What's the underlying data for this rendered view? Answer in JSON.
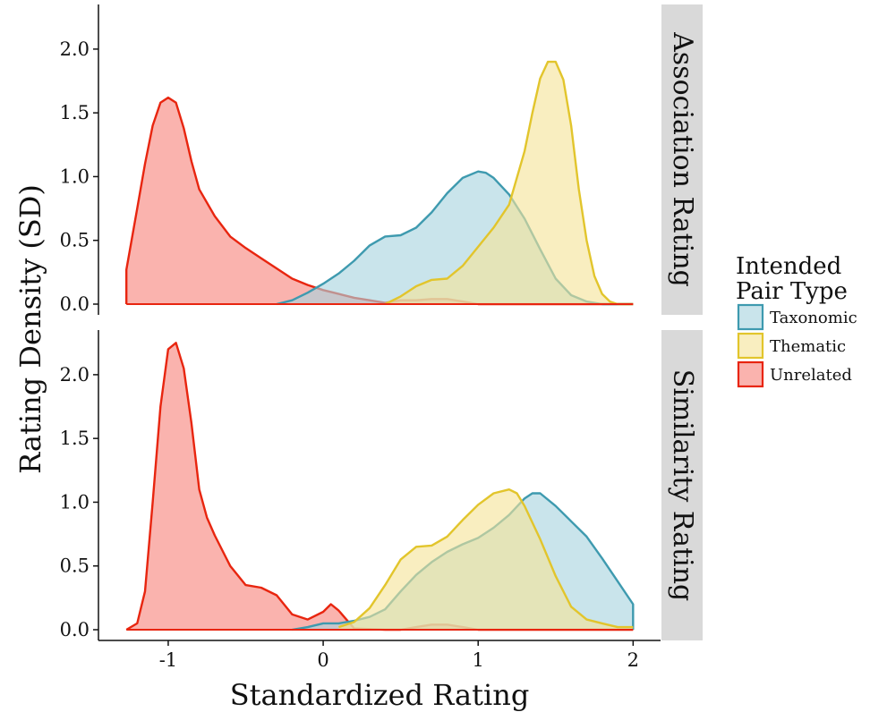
{
  "chart_data": {
    "type": "area",
    "subtype": "density",
    "xlabel": "Standardized Rating",
    "ylabel": "Rating Density (SD)",
    "xlim": [
      -1.3,
      2.05
    ],
    "x_ticks": [
      -1,
      0,
      1,
      2
    ],
    "x_tick_labels": [
      "-1",
      "0",
      "1",
      "2"
    ],
    "legend": {
      "title_lines": [
        "Intended",
        "Pair Type"
      ],
      "placement": "right",
      "entries": [
        {
          "name": "Taxonomic",
          "color": "#3e9aaf",
          "fill": "#a8d4df"
        },
        {
          "name": "Thematic",
          "color": "#e2c52c",
          "fill": "#f6e39a"
        },
        {
          "name": "Unrelated",
          "color": "#e8250f",
          "fill": "#f7857c"
        }
      ]
    },
    "panels": [
      {
        "strip": "Association Rating",
        "ylim": [
          0,
          2.35
        ],
        "y_ticks": [
          0,
          0.5,
          1.0,
          1.5,
          2.0
        ],
        "y_tick_labels": [
          "0.0",
          "0.5",
          "1.0",
          "1.5",
          "2.0"
        ],
        "series": [
          {
            "name": "Taxonomic",
            "x": [
              -0.3,
              -0.2,
              -0.1,
              0,
              0.1,
              0.2,
              0.3,
              0.4,
              0.5,
              0.6,
              0.7,
              0.8,
              0.9,
              1.0,
              1.05,
              1.1,
              1.2,
              1.3,
              1.4,
              1.5,
              1.6,
              1.7,
              1.8,
              1.9,
              2.0
            ],
            "y": [
              0.0,
              0.03,
              0.09,
              0.16,
              0.24,
              0.34,
              0.46,
              0.53,
              0.54,
              0.6,
              0.72,
              0.87,
              0.99,
              1.04,
              1.03,
              0.99,
              0.86,
              0.67,
              0.43,
              0.2,
              0.07,
              0.02,
              0.0,
              0.0,
              0.0
            ]
          },
          {
            "name": "Thematic",
            "x": [
              0.4,
              0.5,
              0.6,
              0.7,
              0.8,
              0.9,
              1.0,
              1.1,
              1.2,
              1.3,
              1.35,
              1.4,
              1.45,
              1.5,
              1.55,
              1.6,
              1.65,
              1.7,
              1.75,
              1.8,
              1.85,
              1.9,
              2.0
            ],
            "y": [
              0.0,
              0.06,
              0.14,
              0.19,
              0.2,
              0.3,
              0.45,
              0.6,
              0.78,
              1.2,
              1.5,
              1.77,
              1.9,
              1.9,
              1.76,
              1.4,
              0.9,
              0.5,
              0.22,
              0.08,
              0.02,
              0.0,
              0.0
            ]
          },
          {
            "name": "Unrelated",
            "x": [
              -1.27,
              -1.27,
              -1.2,
              -1.15,
              -1.1,
              -1.05,
              -1.0,
              -0.95,
              -0.9,
              -0.85,
              -0.8,
              -0.7,
              -0.6,
              -0.5,
              -0.4,
              -0.3,
              -0.2,
              -0.1,
              0,
              0.1,
              0.2,
              0.3,
              0.4,
              0.5,
              0.6,
              0.7,
              0.8,
              0.9,
              1.0,
              1.2,
              1.5,
              2.0
            ],
            "y": [
              0.0,
              0.27,
              0.75,
              1.1,
              1.4,
              1.58,
              1.62,
              1.58,
              1.38,
              1.12,
              0.9,
              0.69,
              0.53,
              0.44,
              0.36,
              0.28,
              0.2,
              0.15,
              0.11,
              0.08,
              0.05,
              0.03,
              0.01,
              0.03,
              0.03,
              0.04,
              0.04,
              0.02,
              0.0,
              0.0,
              0.0,
              0.0
            ]
          }
        ]
      },
      {
        "strip": "Similarity Rating",
        "ylim": [
          0,
          2.35
        ],
        "y_ticks": [
          0,
          0.5,
          1.0,
          1.5,
          2.0
        ],
        "y_tick_labels": [
          "0.0",
          "0.5",
          "1.0",
          "1.5",
          "2.0"
        ],
        "series": [
          {
            "name": "Taxonomic",
            "x": [
              -0.2,
              -0.1,
              0,
              0.1,
              0.2,
              0.3,
              0.4,
              0.5,
              0.6,
              0.7,
              0.8,
              0.9,
              1.0,
              1.1,
              1.2,
              1.3,
              1.35,
              1.4,
              1.5,
              1.6,
              1.7,
              1.8,
              1.9,
              2.0,
              2.0
            ],
            "y": [
              0.0,
              0.02,
              0.05,
              0.05,
              0.07,
              0.1,
              0.16,
              0.3,
              0.43,
              0.53,
              0.61,
              0.67,
              0.72,
              0.8,
              0.9,
              1.03,
              1.07,
              1.07,
              0.97,
              0.85,
              0.73,
              0.56,
              0.38,
              0.2,
              0.0
            ]
          },
          {
            "name": "Thematic",
            "x": [
              0.1,
              0.2,
              0.3,
              0.4,
              0.5,
              0.6,
              0.7,
              0.8,
              0.9,
              1.0,
              1.1,
              1.2,
              1.25,
              1.3,
              1.4,
              1.5,
              1.6,
              1.7,
              1.8,
              1.9,
              2.0
            ],
            "y": [
              0.02,
              0.06,
              0.17,
              0.35,
              0.55,
              0.65,
              0.66,
              0.73,
              0.86,
              0.98,
              1.07,
              1.1,
              1.07,
              0.97,
              0.71,
              0.42,
              0.18,
              0.08,
              0.05,
              0.02,
              0.02
            ]
          },
          {
            "name": "Unrelated",
            "x": [
              -1.27,
              -1.2,
              -1.15,
              -1.1,
              -1.05,
              -1.0,
              -0.95,
              -0.9,
              -0.85,
              -0.8,
              -0.75,
              -0.7,
              -0.6,
              -0.5,
              -0.4,
              -0.3,
              -0.2,
              -0.1,
              0,
              0.05,
              0.1,
              0.2,
              0.4,
              0.5,
              0.6,
              0.7,
              0.8,
              0.9,
              1.0,
              1.5,
              2.0
            ],
            "y": [
              0.0,
              0.05,
              0.3,
              1.0,
              1.75,
              2.2,
              2.25,
              2.05,
              1.62,
              1.1,
              0.88,
              0.74,
              0.5,
              0.35,
              0.33,
              0.27,
              0.12,
              0.08,
              0.14,
              0.2,
              0.15,
              0.01,
              0.0,
              0.0,
              0.02,
              0.04,
              0.04,
              0.02,
              0.0,
              0.0,
              0.0
            ]
          }
        ]
      }
    ]
  }
}
